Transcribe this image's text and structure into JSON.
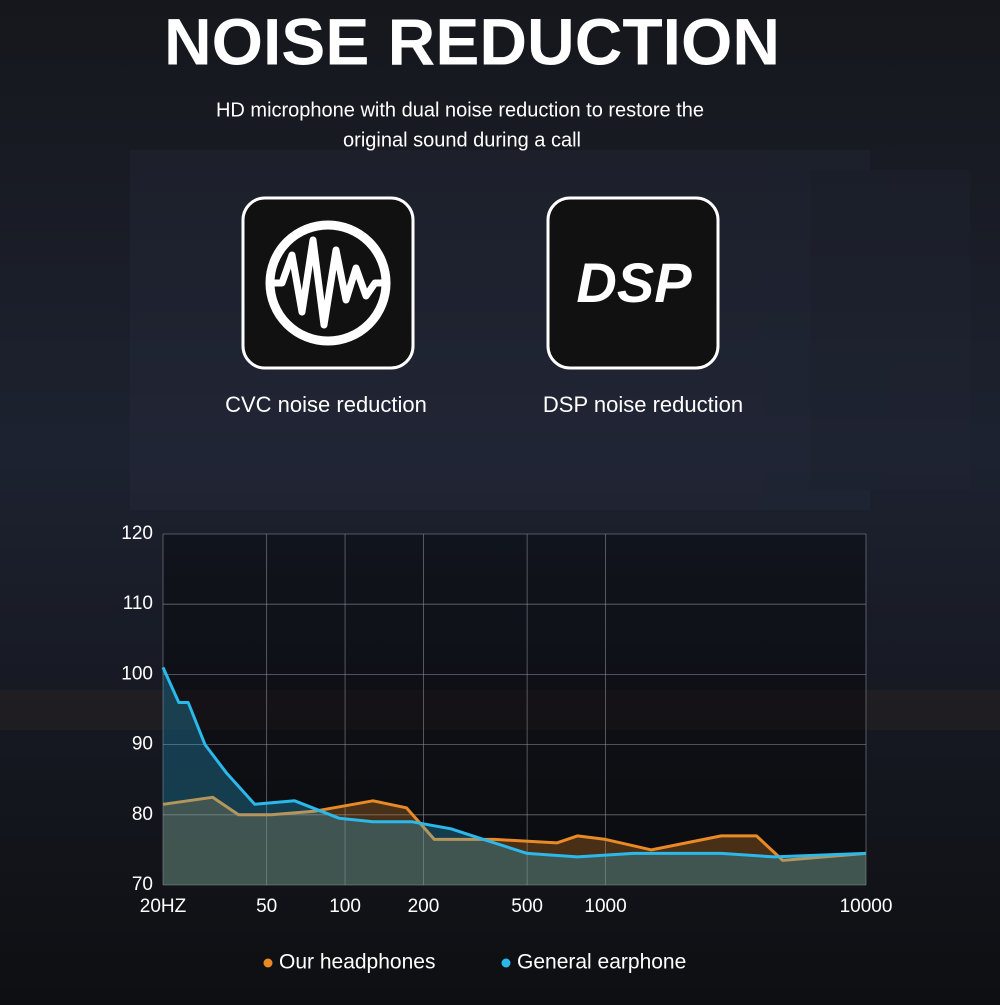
{
  "header": {
    "title": "NOISE REDUCTION",
    "subtitle": [
      "HD microphone with dual noise reduction to restore the",
      "original sound during a call"
    ]
  },
  "features": [
    {
      "label": "CVC noise reduction"
    },
    {
      "label": "DSP noise reduction",
      "icon_text": "DSP"
    }
  ],
  "chart_data": {
    "type": "area",
    "xscale": "log",
    "xlim": [
      20,
      10000
    ],
    "ylim": [
      70,
      120
    ],
    "xticks": [
      {
        "value": 20,
        "label": "20HZ"
      },
      50,
      100,
      200,
      500,
      1000,
      10000
    ],
    "yticks": [
      70,
      80,
      90,
      100,
      110,
      120
    ],
    "grid": true,
    "legend": "bottom",
    "series": [
      {
        "name": "Our headphones",
        "color": "#e98a26",
        "x": [
          20,
          31,
          39,
          52,
          76,
          128,
          172,
          220,
          375,
          650,
          780,
          1000,
          1500,
          2780,
          3800,
          4790,
          10000
        ],
        "values": [
          81.5,
          82.5,
          80,
          80,
          80.5,
          82,
          81,
          76.5,
          76.5,
          76,
          77,
          76.5,
          75,
          77,
          77,
          73.5,
          74.5
        ]
      },
      {
        "name": "General earphone",
        "color": "#2bb8ea",
        "x": [
          20,
          23,
          25,
          29,
          35,
          45,
          64,
          95,
          128,
          181,
          255,
          340,
          500,
          780,
          1280,
          2780,
          4430,
          10000
        ],
        "values": [
          101,
          96,
          96,
          90,
          86,
          81.5,
          82,
          79.5,
          79,
          79,
          78,
          76.5,
          74.5,
          74,
          74.5,
          74.5,
          74,
          74.5
        ]
      }
    ]
  }
}
